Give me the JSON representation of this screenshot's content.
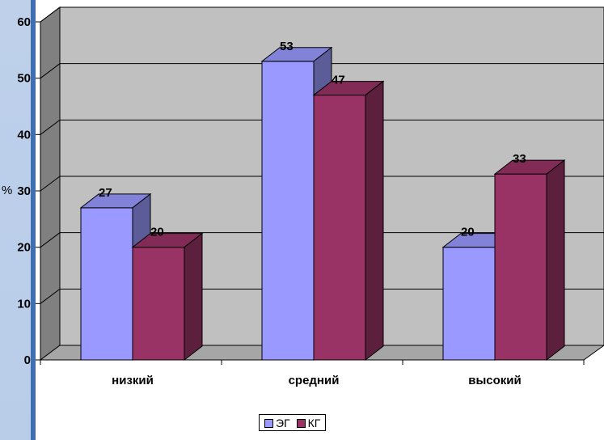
{
  "chart_data": {
    "type": "bar",
    "categories": [
      "низкий",
      "средний",
      "высокий"
    ],
    "series": [
      {
        "name": "ЭГ",
        "values": [
          27,
          53,
          20
        ],
        "color": "#9999ff"
      },
      {
        "name": "КГ",
        "values": [
          20,
          47,
          33
        ],
        "color": "#993366"
      }
    ],
    "ylabel": "%",
    "ylim": [
      0,
      60
    ],
    "yticks": [
      "0",
      "10",
      "20",
      "30",
      "40",
      "50",
      "60"
    ],
    "grid": true,
    "legend_position": "bottom",
    "style": "3d-clustered-column"
  }
}
